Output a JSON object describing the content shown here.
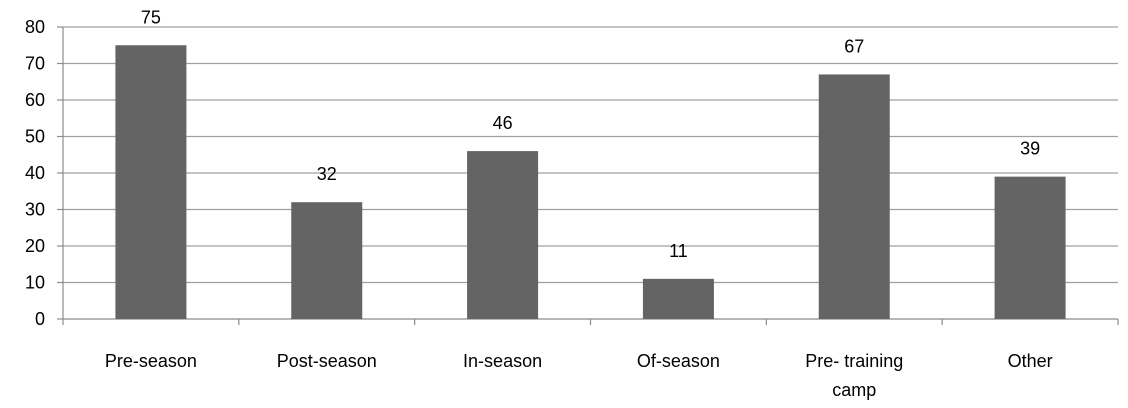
{
  "chart_data": {
    "type": "bar",
    "title": "",
    "xlabel": "",
    "ylabel": "",
    "categories": [
      [
        "Pre-season"
      ],
      [
        "Post-season"
      ],
      [
        "In-season"
      ],
      [
        "Of-season"
      ],
      [
        "Pre- training",
        "camp"
      ],
      [
        "Other"
      ]
    ],
    "values": [
      75,
      32,
      46,
      11,
      67,
      39
    ],
    "ylim": [
      0,
      80
    ],
    "yticks": [
      0,
      10,
      20,
      30,
      40,
      50,
      60,
      70,
      80
    ],
    "grid": true,
    "legend": "none",
    "colors": {
      "bar": "#646464",
      "grid": "#a0a0a0",
      "axis": "#8c8c8c"
    }
  }
}
